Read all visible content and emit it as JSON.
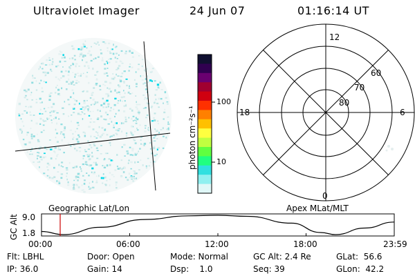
{
  "header": {
    "title": "Ultraviolet Imager",
    "date": "24 Jun 07",
    "time": "01:16:14 UT"
  },
  "colorbar": {
    "unit_label": "photon cm⁻²s⁻¹",
    "ticks": [
      "100",
      "10"
    ],
    "colors": [
      "#101030",
      "#300050",
      "#6a0070",
      "#a00030",
      "#d00010",
      "#ff3000",
      "#ff8000",
      "#ffc000",
      "#ffff40",
      "#c0ff40",
      "#60ff40",
      "#20ff80",
      "#30e0e0",
      "#90f0f0",
      "#e0f8f8"
    ]
  },
  "left_panel": {
    "caption": "Geographic Lat/Lon",
    "speckle_color": "#00d8e8"
  },
  "right_panel": {
    "caption": "Apex MLat/MLT",
    "mlt_labels": {
      "top": "12",
      "left": "18",
      "right": "6",
      "bottom": "0"
    },
    "mlat_labels": [
      "60",
      "70",
      "80"
    ]
  },
  "altitude_plot": {
    "ylabel": "GC Alt",
    "yticks": [
      "9.0",
      "1.8"
    ],
    "xticks": [
      "00:00",
      "06:00",
      "12:00",
      "18:00",
      "23:59"
    ],
    "x_hours": [
      0,
      1.5,
      4,
      7,
      10,
      12,
      14,
      17,
      19,
      20,
      22,
      24
    ],
    "alt_re": [
      3.0,
      1.8,
      4.6,
      7.6,
      9.0,
      9.2,
      8.8,
      6.2,
      2.6,
      1.8,
      4.3,
      6.6
    ],
    "marker_hour": 1.27,
    "marker_color": "#cc0000"
  },
  "info": {
    "col1": [
      "Flt: LBHL",
      "IP: 36.0"
    ],
    "col2": [
      "Door: Open",
      "Gain: 14"
    ],
    "col3": [
      "Mode: Normal",
      "Dsp:    1.0"
    ],
    "col4": [
      "GC Alt: 2.4 Re",
      "Seq: 39"
    ],
    "col5": [
      "GLat:  56.6",
      "GLon:  42.2"
    ]
  }
}
